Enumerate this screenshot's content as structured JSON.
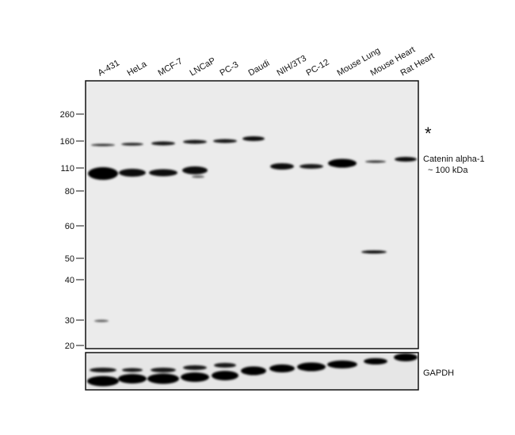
{
  "lanes": [
    "A-431",
    "HeLa",
    "MCF-7",
    "LNCaP",
    "PC-3",
    "Daudi",
    "NIH/3T3",
    "PC-12",
    "Mouse Lung",
    "Mouse Heart",
    "Rat Heart"
  ],
  "markers": [
    "260",
    "160",
    "110",
    "80",
    "60",
    "50",
    "40",
    "30",
    "20"
  ],
  "annotations": {
    "asterisk": "*",
    "target": "Catenin alpha-1",
    "size": "~ 100 kDa",
    "loading_control": "GAPDH"
  }
}
